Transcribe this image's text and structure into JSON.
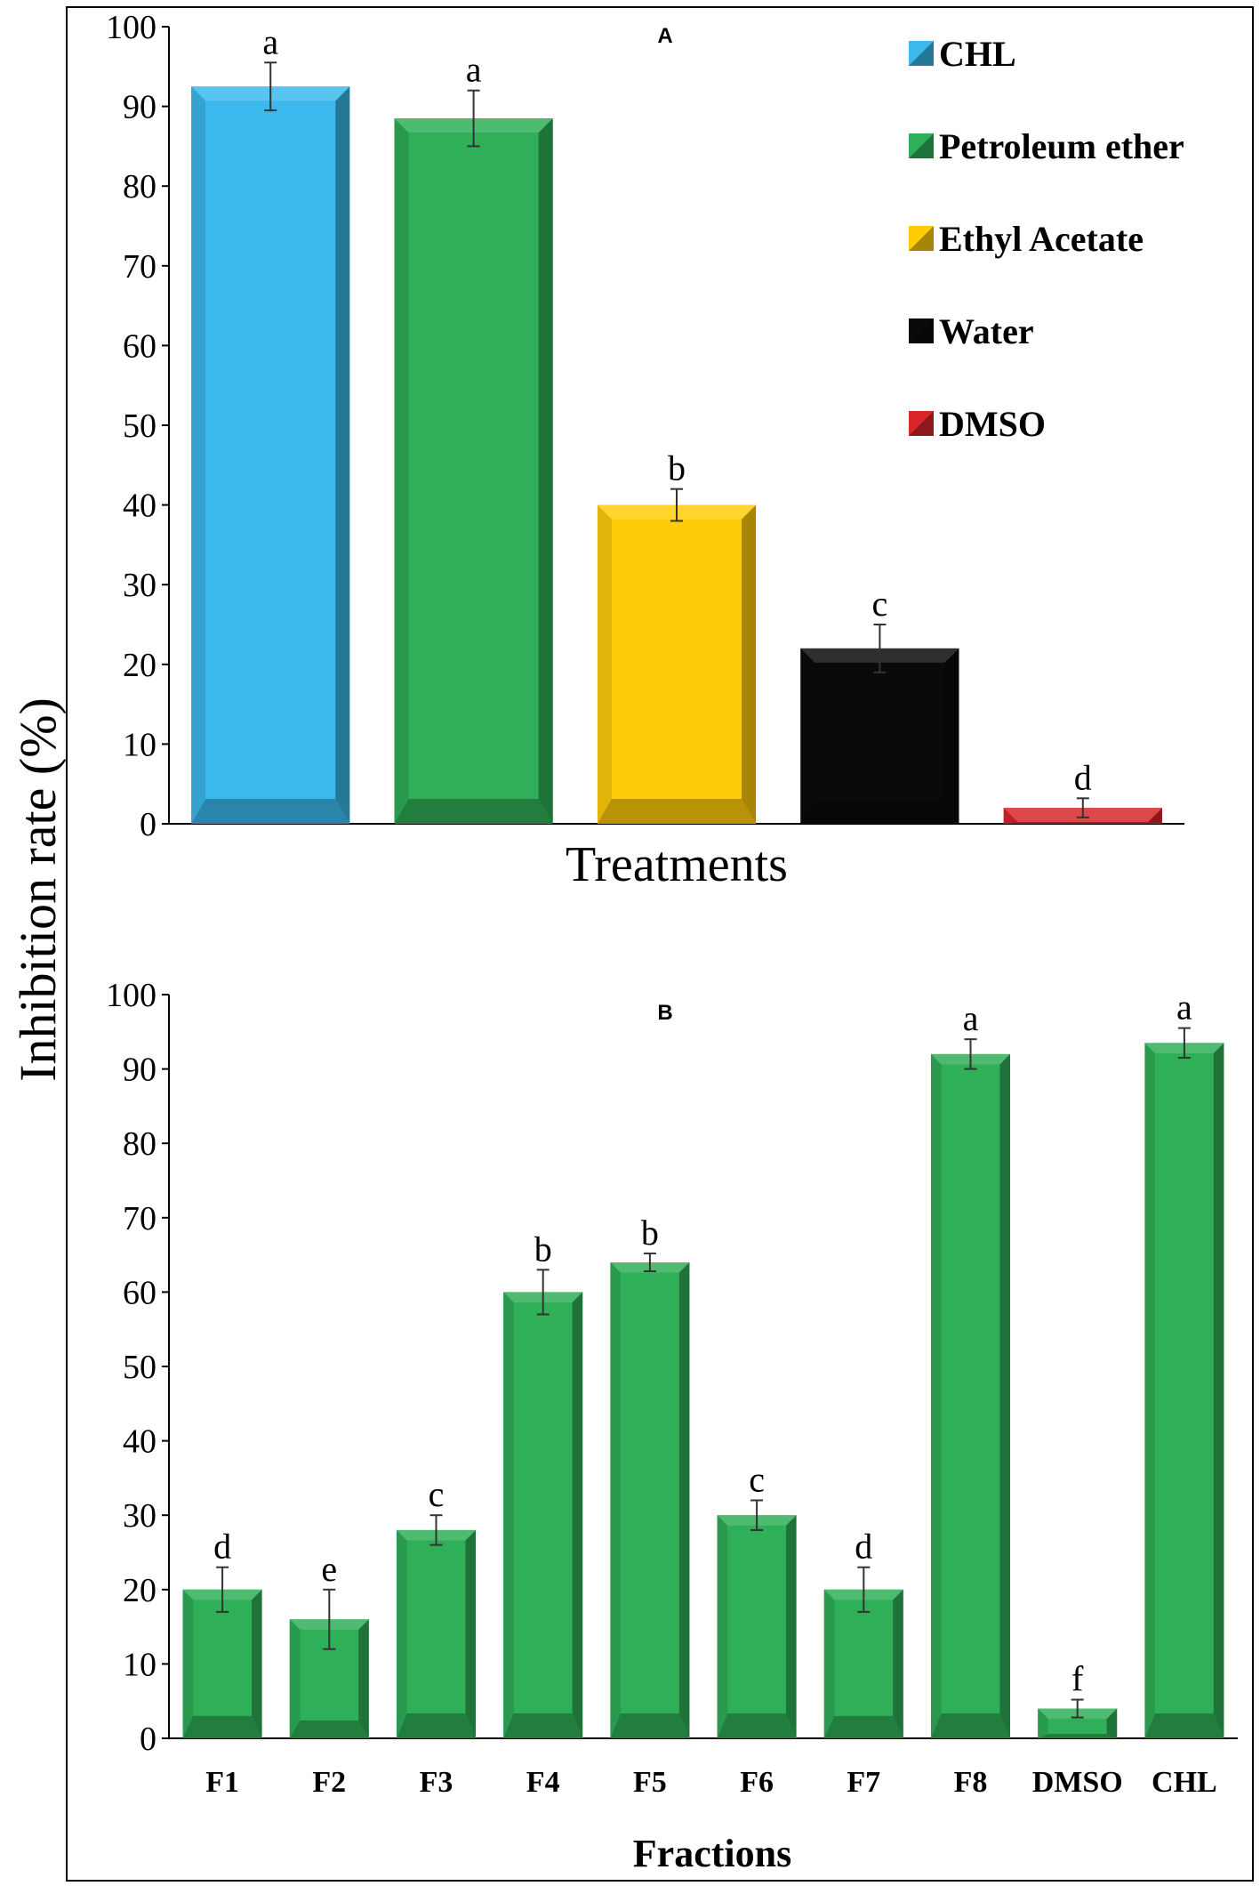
{
  "ylabel": "Inhibition rate (%)",
  "chart_data": [
    {
      "type": "bar",
      "panel_label": "A",
      "xlabel": "Treatments",
      "ylim": [
        0,
        100
      ],
      "yticks": [
        0,
        10,
        20,
        30,
        40,
        50,
        60,
        70,
        80,
        90,
        100
      ],
      "categories": [
        "CHL",
        "Petroleum ether",
        "Ethyl Acetate",
        "Water",
        "DMSO"
      ],
      "values": [
        92.5,
        88.5,
        40,
        22,
        2
      ],
      "errors": [
        3,
        3.5,
        2,
        3,
        1.2
      ],
      "significance": [
        "a",
        "a",
        "b",
        "c",
        "d"
      ],
      "colors": [
        "#3BB9EC",
        "#2FAF57",
        "#FFCC0A",
        "#0A0A0A",
        "#D8262B"
      ],
      "legend_position": "top-right",
      "show_tick_labels": false
    },
    {
      "type": "bar",
      "panel_label": "B",
      "xlabel": "Fractions",
      "ylim": [
        0,
        100
      ],
      "yticks": [
        0,
        10,
        20,
        30,
        40,
        50,
        60,
        70,
        80,
        90,
        100
      ],
      "categories": [
        "F1",
        "F2",
        "F3",
        "F4",
        "F5",
        "F6",
        "F7",
        "F8",
        "DMSO",
        "CHL"
      ],
      "values": [
        20,
        16,
        28,
        60,
        64,
        30,
        20,
        92,
        4,
        93.5
      ],
      "errors": [
        3,
        4,
        2,
        3,
        1.2,
        2,
        3,
        2,
        1.2,
        2
      ],
      "significance": [
        "d",
        "e",
        "c",
        "b",
        "b",
        "c",
        "d",
        "a",
        "f",
        "a"
      ],
      "colors": [
        "#2FAF57"
      ],
      "show_tick_labels": true
    }
  ]
}
